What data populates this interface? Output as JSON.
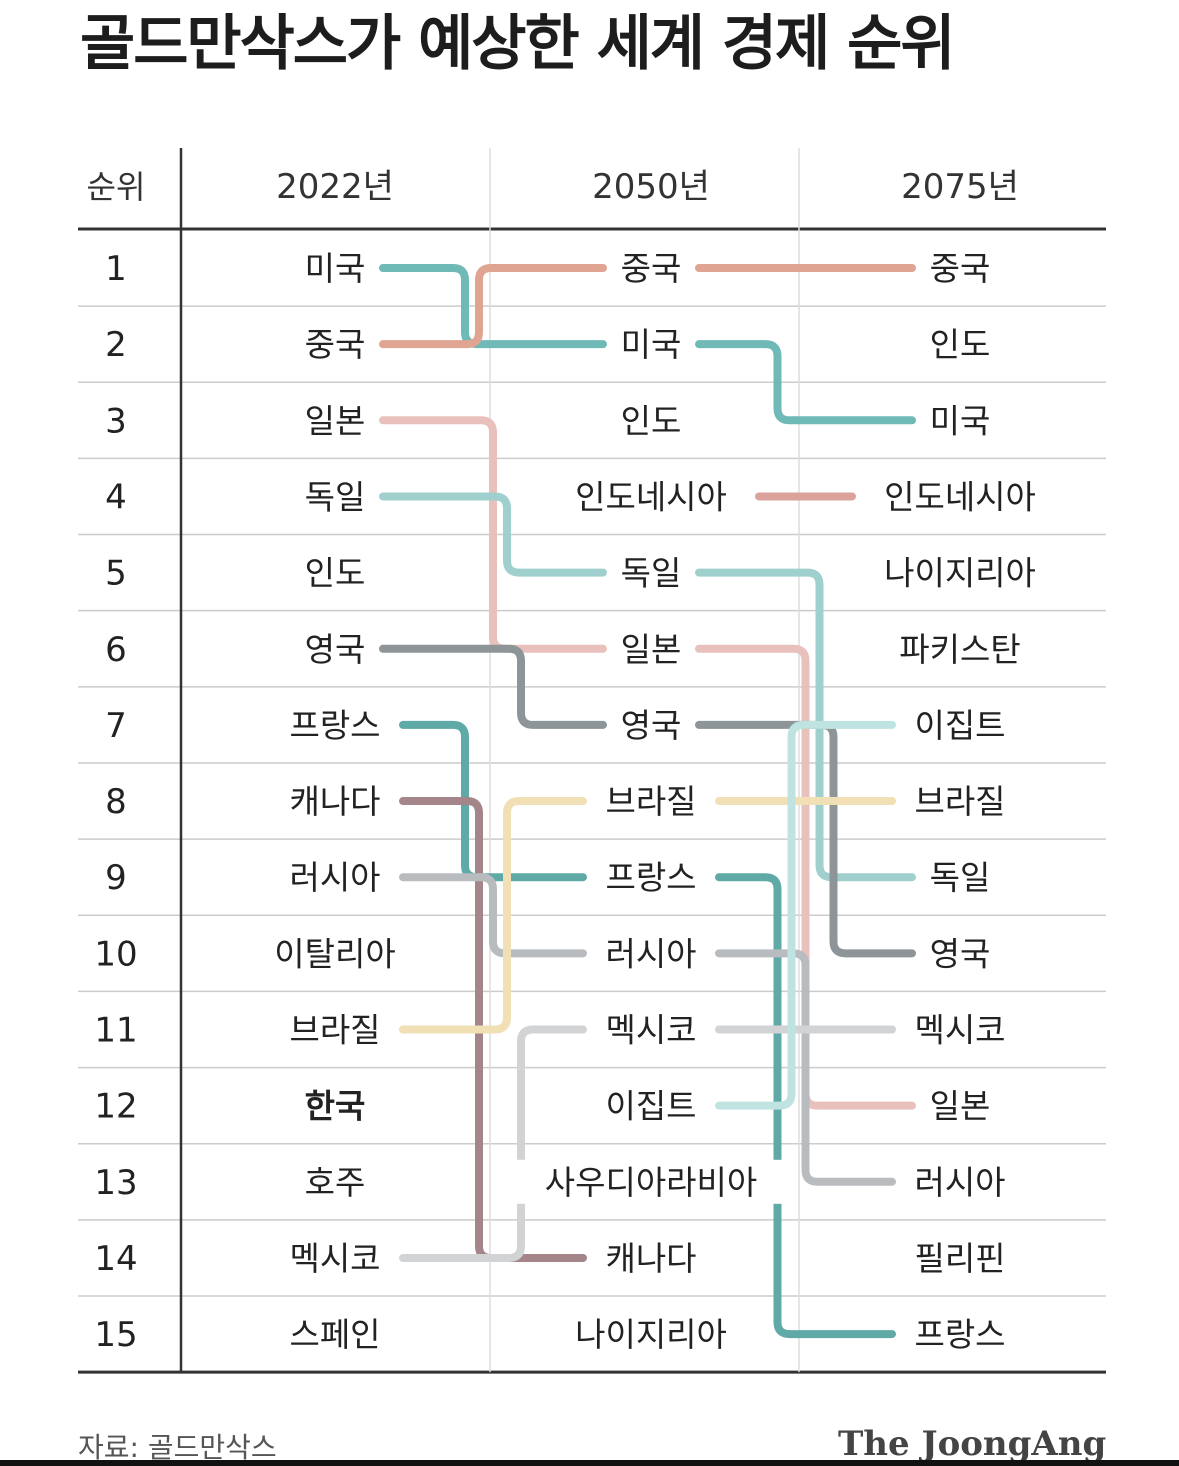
{
  "title": "골드만삭스가 예상한 세계 경제 순위",
  "footer": {
    "source": "자료: 골드만삭스",
    "brand": "The JoongAng"
  },
  "colors": {
    "미국": "#6fb9b6",
    "중국": "#e0a493",
    "일본": "#e8c1bd",
    "독일": "#9fd0cd",
    "영국": "#8d9599",
    "프랑스": "#5fa9a6",
    "캐나다": "#a4858a",
    "러시아": "#b8bcbf",
    "브라질": "#f1dfb6",
    "멕시코": "#d1d3d5",
    "인도네시아": "#dba39b",
    "이집트": "#bfe3e1",
    "gridline": "#cccccc",
    "axis": "#333333"
  },
  "chart_data": {
    "type": "table",
    "title": "골드만삭스가 예상한 세계 경제 순위",
    "rank_header": "순위",
    "columns": [
      "2022년",
      "2050년",
      "2075년"
    ],
    "ranks": [
      "1",
      "2",
      "3",
      "4",
      "5",
      "6",
      "7",
      "8",
      "9",
      "10",
      "11",
      "12",
      "13",
      "14",
      "15"
    ],
    "series": [
      {
        "name": "2022년",
        "values": [
          "미국",
          "중국",
          "일본",
          "독일",
          "인도",
          "영국",
          "프랑스",
          "캐나다",
          "러시아",
          "이탈리아",
          "브라질",
          "한국",
          "호주",
          "멕시코",
          "스페인"
        ]
      },
      {
        "name": "2050년",
        "values": [
          "중국",
          "미국",
          "인도",
          "인도네시아",
          "독일",
          "일본",
          "영국",
          "브라질",
          "프랑스",
          "러시아",
          "멕시코",
          "이집트",
          "사우디아라비아",
          "캐나다",
          "나이지리아"
        ]
      },
      {
        "name": "2075년",
        "values": [
          "중국",
          "인도",
          "미국",
          "인도네시아",
          "나이지리아",
          "파키스탄",
          "이집트",
          "브라질",
          "독일",
          "영국",
          "멕시코",
          "일본",
          "러시아",
          "필리핀",
          "프랑스"
        ]
      }
    ],
    "bold": [
      "한국"
    ],
    "tracked_countries": [
      "미국",
      "중국",
      "일본",
      "독일",
      "영국",
      "프랑스",
      "캐나다",
      "러시아",
      "브라질",
      "멕시코",
      "인도네시아",
      "이집트"
    ]
  }
}
